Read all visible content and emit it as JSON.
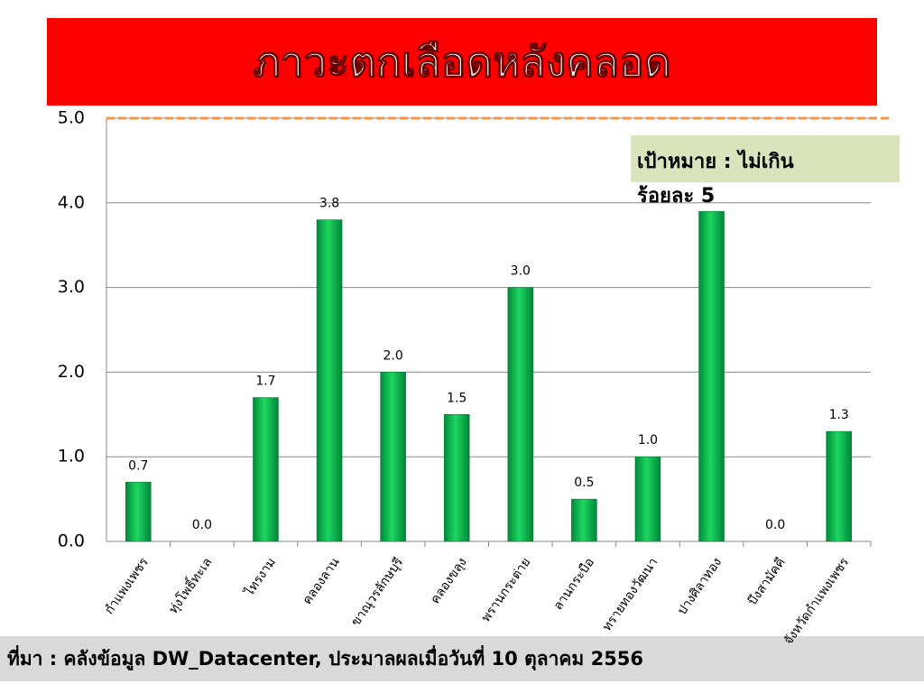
{
  "chart_data": {
    "type": "bar",
    "title": "ภาวะตกเลือดหลังคลอด",
    "categories": [
      "กำแพงเพชร",
      "ทุ่งโพธิ์ทะเล",
      "ไทรงาม",
      "คลองลาน",
      "ขาณุวรลักษบุรี",
      "คลองขลุง",
      "พรานกระต่าย",
      "ลานกระบือ",
      "ทรายทองวัฒนา",
      "ปางศิลาทอง",
      "บึงสามัคคี",
      "จังหวัดกำแพงเพชร"
    ],
    "values": [
      0.7,
      0.0,
      1.7,
      3.8,
      2.0,
      1.5,
      3.0,
      0.5,
      1.0,
      3.9,
      0.0,
      1.3
    ],
    "value_labels": [
      "0.7",
      "0.0",
      "1.7",
      "3.8",
      "2.0",
      "1.5",
      "3.0",
      "0.5",
      "1.0",
      null,
      "0.0",
      "1.3"
    ],
    "color": "#00b050",
    "ylim": [
      0,
      5
    ],
    "yticks": [
      {
        "value": 0,
        "label": "0.0"
      },
      {
        "value": 1,
        "label": "1.0"
      },
      {
        "value": 2,
        "label": "2.0"
      },
      {
        "value": 3,
        "label": "3.0"
      },
      {
        "value": 4,
        "label": "4.0"
      },
      {
        "value": 5,
        "label": "5.0"
      }
    ],
    "grid": true,
    "target": {
      "value": 5,
      "label": "เป้าหมาย : ไม่เกินร้อยละ 5"
    },
    "source": "ที่มา :  คลังข้อมูล DW_Datacenter, ประมาลผลเมื่อวันที่ 10 ตุลาคม 2556"
  }
}
